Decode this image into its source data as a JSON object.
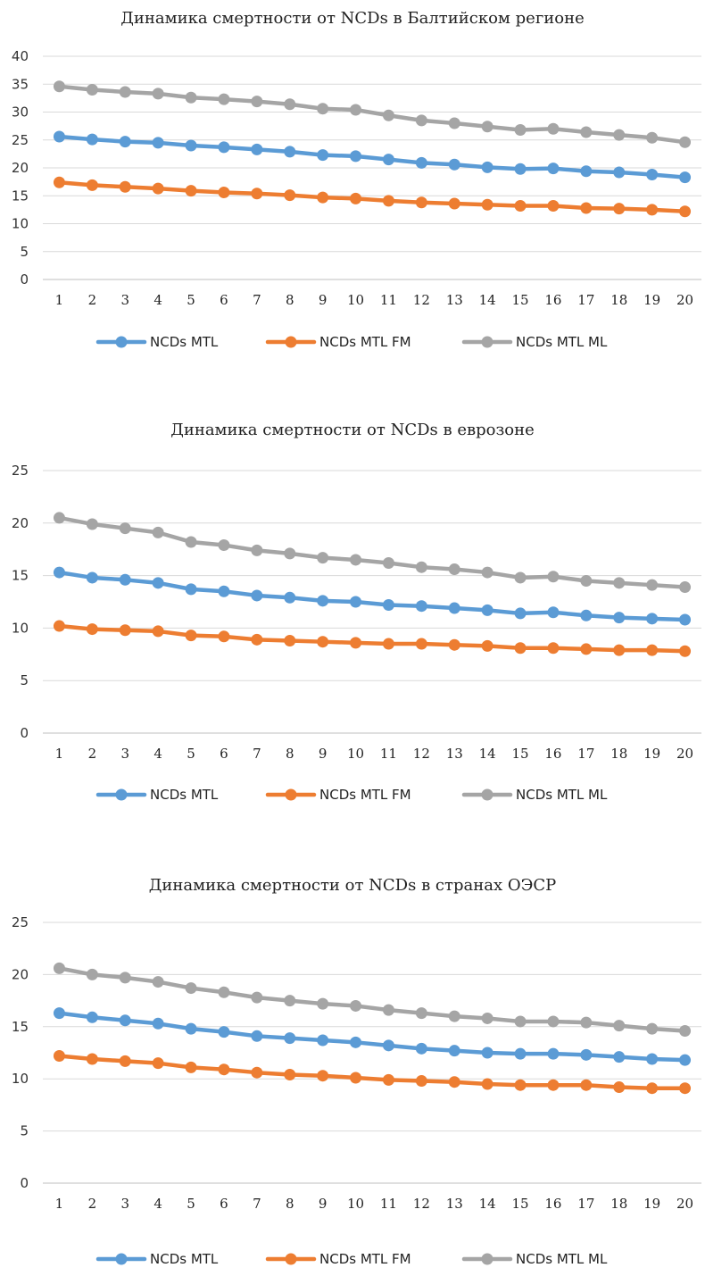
{
  "chart_data": [
    {
      "type": "line",
      "title": "Динамика смертности от NCDs в Балтийском регионе",
      "categories": [
        "1",
        "2",
        "3",
        "4",
        "5",
        "6",
        "7",
        "8",
        "9",
        "10",
        "11",
        "12",
        "13",
        "14",
        "15",
        "16",
        "17",
        "18",
        "19",
        "20"
      ],
      "ylim": [
        0,
        40
      ],
      "yticks": [
        "0",
        "5",
        "10",
        "15",
        "20",
        "25",
        "30",
        "35",
        "40"
      ],
      "grid": true,
      "legend": "bottom",
      "series": [
        {
          "name": "NCDs MTL",
          "color": "#5b9bd5",
          "values": [
            25.6,
            25.1,
            24.7,
            24.5,
            24.0,
            23.7,
            23.3,
            22.9,
            22.3,
            22.1,
            21.5,
            20.9,
            20.6,
            20.1,
            19.8,
            19.9,
            19.4,
            19.2,
            18.8,
            18.3
          ]
        },
        {
          "name": "NCDs MTL FM",
          "color": "#ed7d31",
          "values": [
            17.4,
            16.9,
            16.6,
            16.3,
            15.9,
            15.6,
            15.4,
            15.1,
            14.7,
            14.5,
            14.1,
            13.8,
            13.6,
            13.4,
            13.2,
            13.2,
            12.8,
            12.7,
            12.5,
            12.2
          ]
        },
        {
          "name": "NCDs MTL ML",
          "color": "#a5a5a5",
          "values": [
            34.6,
            34.0,
            33.6,
            33.3,
            32.6,
            32.3,
            31.9,
            31.4,
            30.6,
            30.4,
            29.4,
            28.5,
            28.0,
            27.4,
            26.8,
            27.0,
            26.4,
            25.9,
            25.4,
            24.6
          ]
        }
      ]
    },
    {
      "type": "line",
      "title": "Динамика смертности от NCDs в еврозоне",
      "categories": [
        "1",
        "2",
        "3",
        "4",
        "5",
        "6",
        "7",
        "8",
        "9",
        "10",
        "11",
        "12",
        "13",
        "14",
        "15",
        "16",
        "17",
        "18",
        "19",
        "20"
      ],
      "ylim": [
        0,
        25
      ],
      "yticks": [
        "0",
        "5",
        "10",
        "15",
        "20",
        "25"
      ],
      "grid": true,
      "legend": "bottom",
      "series": [
        {
          "name": "NCDs MTL",
          "color": "#5b9bd5",
          "values": [
            15.3,
            14.8,
            14.6,
            14.3,
            13.7,
            13.5,
            13.1,
            12.9,
            12.6,
            12.5,
            12.2,
            12.1,
            11.9,
            11.7,
            11.4,
            11.5,
            11.2,
            11.0,
            10.9,
            10.8
          ]
        },
        {
          "name": "NCDs MTL FM",
          "color": "#ed7d31",
          "values": [
            10.2,
            9.9,
            9.8,
            9.7,
            9.3,
            9.2,
            8.9,
            8.8,
            8.7,
            8.6,
            8.5,
            8.5,
            8.4,
            8.3,
            8.1,
            8.1,
            8.0,
            7.9,
            7.9,
            7.8
          ]
        },
        {
          "name": "NCDs MTL ML",
          "color": "#a5a5a5",
          "values": [
            20.5,
            19.9,
            19.5,
            19.1,
            18.2,
            17.9,
            17.4,
            17.1,
            16.7,
            16.5,
            16.2,
            15.8,
            15.6,
            15.3,
            14.8,
            14.9,
            14.5,
            14.3,
            14.1,
            13.9
          ]
        }
      ]
    },
    {
      "type": "line",
      "title": "Динамика смертности от NCDs в странах ОЭСР",
      "categories": [
        "1",
        "2",
        "3",
        "4",
        "5",
        "6",
        "7",
        "8",
        "9",
        "10",
        "11",
        "12",
        "13",
        "14",
        "15",
        "16",
        "17",
        "18",
        "19",
        "20"
      ],
      "ylim": [
        0,
        25
      ],
      "yticks": [
        "0",
        "5",
        "10",
        "15",
        "20",
        "25"
      ],
      "grid": true,
      "legend": "bottom",
      "series": [
        {
          "name": "NCDs MTL",
          "color": "#5b9bd5",
          "values": [
            16.3,
            15.9,
            15.6,
            15.3,
            14.8,
            14.5,
            14.1,
            13.9,
            13.7,
            13.5,
            13.2,
            12.9,
            12.7,
            12.5,
            12.4,
            12.4,
            12.3,
            12.1,
            11.9,
            11.8
          ]
        },
        {
          "name": "NCDs MTL FM",
          "color": "#ed7d31",
          "values": [
            12.2,
            11.9,
            11.7,
            11.5,
            11.1,
            10.9,
            10.6,
            10.4,
            10.3,
            10.1,
            9.9,
            9.8,
            9.7,
            9.5,
            9.4,
            9.4,
            9.4,
            9.2,
            9.1,
            9.1
          ]
        },
        {
          "name": "NCDs MTL ML",
          "color": "#a5a5a5",
          "values": [
            20.6,
            20.0,
            19.7,
            19.3,
            18.7,
            18.3,
            17.8,
            17.5,
            17.2,
            17.0,
            16.6,
            16.3,
            16.0,
            15.8,
            15.5,
            15.5,
            15.4,
            15.1,
            14.8,
            14.6
          ]
        }
      ]
    }
  ]
}
